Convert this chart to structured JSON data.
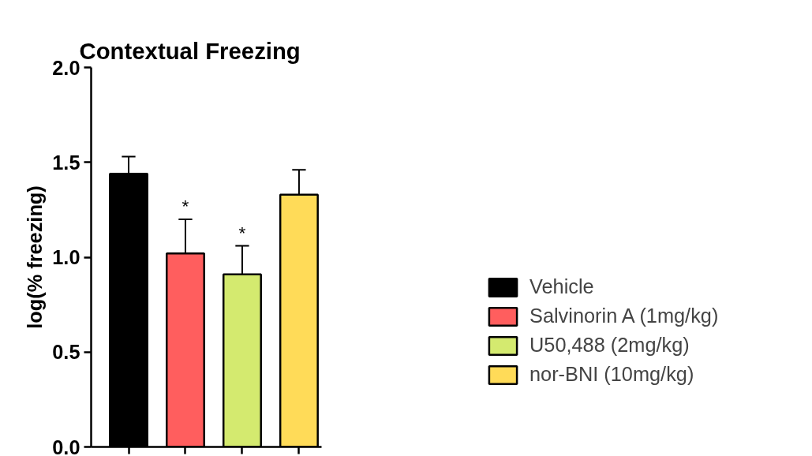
{
  "chart_data": {
    "type": "bar",
    "title": "Contextual Freezing",
    "ylabel": "log(% freezing)",
    "categories": [
      null,
      null,
      null,
      null
    ],
    "series": [
      {
        "name": "Vehicle",
        "color": "#000000",
        "values": [
          1.44,
          null,
          null,
          null
        ],
        "errors": [
          [
            1.44,
            1.53
          ],
          null,
          null,
          null
        ]
      },
      {
        "name": "Salvinorin A (1mg/kg)",
        "color": "#ff5e5e",
        "values": [
          null,
          1.02,
          null,
          null
        ],
        "errors": [
          null,
          [
            1.02,
            1.2
          ],
          null,
          null
        ],
        "value_labels": [
          null,
          "*",
          null,
          null
        ]
      },
      {
        "name": "U50,488 (2mg/kg)",
        "color": "#d4ea6f",
        "values": [
          null,
          null,
          0.91,
          null
        ],
        "errors": [
          null,
          null,
          [
            0.91,
            1.06
          ],
          null
        ],
        "value_labels": [
          null,
          null,
          "*",
          null
        ]
      },
      {
        "name": "nor-BNI (10mg/kg)",
        "color": "#ffdb58",
        "values": [
          null,
          null,
          null,
          1.33
        ],
        "errors": [
          null,
          null,
          null,
          [
            1.33,
            1.46
          ]
        ]
      }
    ],
    "ylim": [
      0,
      2
    ],
    "yticks": [
      {
        "value": 0,
        "label": "0.0"
      },
      {
        "value": 0.5,
        "label": "0.5"
      },
      {
        "value": 1,
        "label": "1.0"
      },
      {
        "value": 1.5,
        "label": "1.5"
      },
      {
        "value": 2,
        "label": "2.0"
      }
    ],
    "grid": false,
    "legend": "right"
  }
}
